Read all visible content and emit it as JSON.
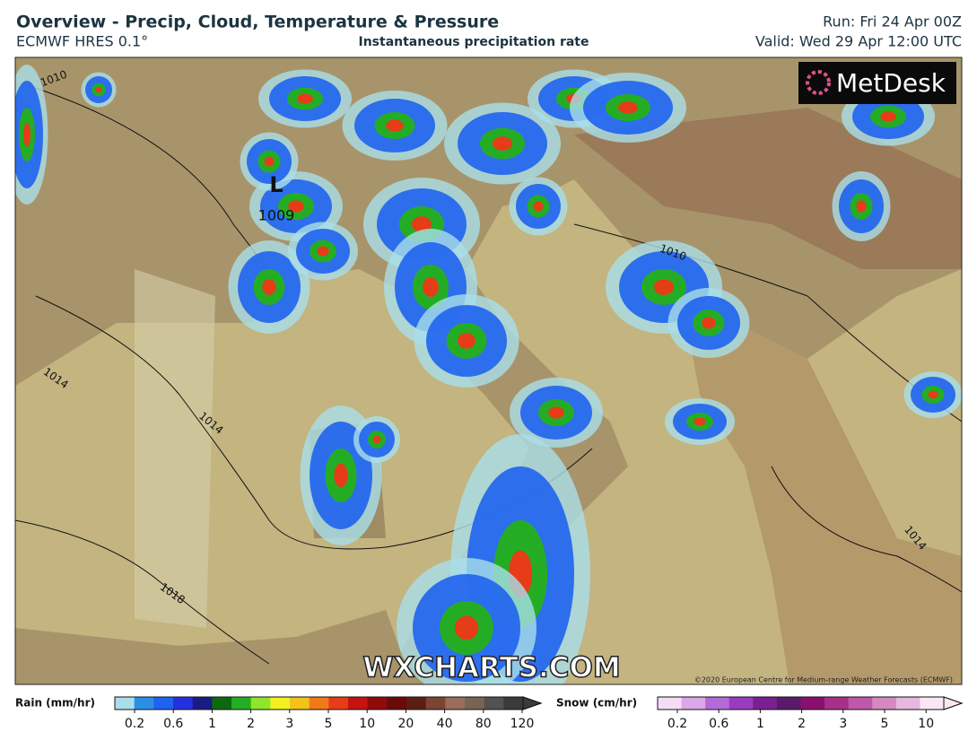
{
  "header": {
    "title": "Overview - Precip, Cloud, Temperature & Pressure",
    "model": "ECMWF HRES 0.1°",
    "subtitle": "Instantaneous precipitation rate",
    "run": "Run: Fri 24 Apr 00Z",
    "valid": "Valid: Wed 29 Apr 12:00 UTC"
  },
  "map": {
    "logo": "MetDesk",
    "watermark": "WXCHARTS.COM",
    "copyright": "©2020 European Centre for Medium-range Weather Forecasts (ECMWF)",
    "low": {
      "symbol": "L",
      "pressure": "1009"
    },
    "isobar_labels": [
      "1010",
      "1014",
      "1014",
      "1018",
      "1010",
      "1014"
    ]
  },
  "legend": {
    "rain": {
      "label": "Rain (mm/hr)",
      "ticks": [
        0.2,
        0.6,
        1,
        2,
        3,
        5,
        10,
        20,
        40,
        80,
        120
      ],
      "colors": [
        "#a9dfe9",
        "#2b8fe6",
        "#1f63f0",
        "#2530e0",
        "#1b1b86",
        "#0b6a10",
        "#24ad24",
        "#8fe52a",
        "#f2f01e",
        "#f2c41a",
        "#f07a18",
        "#e63c18",
        "#c61210",
        "#900a0a",
        "#6a0a0a",
        "#5c1e12",
        "#7c4432",
        "#9a6c5a",
        "#776452",
        "#575050",
        "#3a3a3a"
      ]
    },
    "snow": {
      "label": "Snow (cm/hr)",
      "ticks": [
        0.2,
        0.6,
        1,
        2,
        3,
        5,
        10
      ],
      "colors": [
        "#f6dcf4",
        "#d8a8e8",
        "#b46ad8",
        "#9a3cc0",
        "#7a2090",
        "#5a1a6a",
        "#8a1070",
        "#a8308a",
        "#c058a8",
        "#d48ac0",
        "#e8b8dc",
        "#f8e8f4"
      ]
    }
  }
}
